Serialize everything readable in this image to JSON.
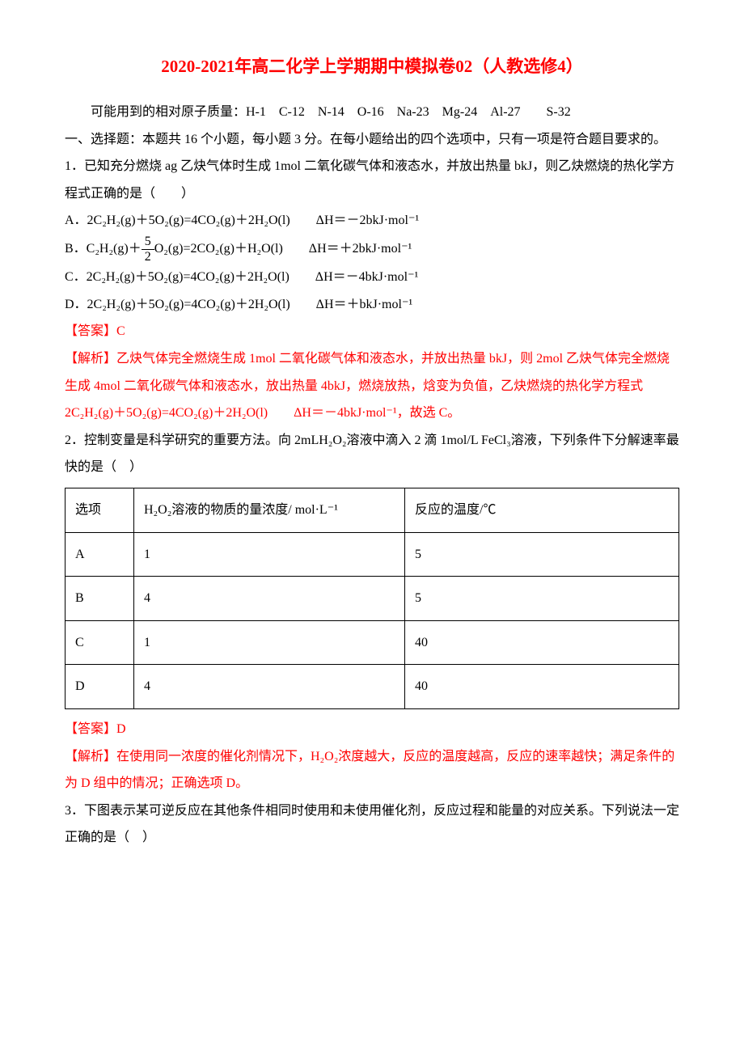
{
  "title": "2020-2021年高二化学上学期期中模拟卷02（人教选修4）",
  "atomic_masses": "可能用到的相对原子质量：H-1　C-12　N-14　O-16　Na-23　Mg-24　Al-27　　S-32",
  "section1_heading": "一、选择题：本题共 16 个小题，每小题 3 分。在每小题给出的四个选项中，只有一项是符合题目要求的。",
  "q1": {
    "stem": "1．已知充分燃烧 ag 乙炔气体时生成 1mol 二氧化碳气体和液态水，并放出热量 bkJ，则乙炔燃烧的热化学方程式正确的是（　　）",
    "optA": "A．2C₂H₂(g)＋5O₂(g)=4CO₂(g)＋2H₂O(l)　　ΔH＝－2bkJ·mol⁻¹",
    "optB_prefix": "B．C₂H₂(g)＋",
    "optB_frac_num": "5",
    "optB_frac_den": "2",
    "optB_suffix": "O₂(g)=2CO₂(g)＋H₂O(l)　　ΔH＝＋2bkJ·mol⁻¹",
    "optC": "C．2C₂H₂(g)＋5O₂(g)=4CO₂(g)＋2H₂O(l)　　ΔH＝－4bkJ·mol⁻¹",
    "optD": "D．2C₂H₂(g)＋5O₂(g)=4CO₂(g)＋2H₂O(l)　　ΔH＝＋bkJ·mol⁻¹",
    "answer": "【答案】C",
    "analysis": "【解析】乙炔气体完全燃烧生成 1mol 二氧化碳气体和液态水，并放出热量 bkJ，则 2mol 乙炔气体完全燃烧生成 4mol 二氧化碳气体和液态水，放出热量 4bkJ，燃烧放热，焓变为负值，乙炔燃烧的热化学方程式 2C₂H₂(g)＋5O₂(g)=4CO₂(g)＋2H₂O(l)　　ΔH＝－4bkJ·mol⁻¹，故选 C。"
  },
  "q2": {
    "stem": "2．控制变量是科学研究的重要方法。向 2mLH₂O₂溶液中滴入 2 滴 1mol/L FeCl₃溶液，下列条件下分解速率最快的是（　）",
    "table": {
      "headers": [
        "选项",
        "H₂O₂溶液的物质的量浓度/ mol·L⁻¹",
        "反应的温度/℃"
      ],
      "rows": [
        [
          "A",
          "1",
          "5"
        ],
        [
          "B",
          "4",
          "5"
        ],
        [
          "C",
          "1",
          "40"
        ],
        [
          "D",
          "4",
          "40"
        ]
      ]
    },
    "answer": "【答案】D",
    "analysis": "【解析】在使用同一浓度的催化剂情况下，H₂O₂浓度越大，反应的温度越高，反应的速率越快；满足条件的为 D 组中的情况；正确选项 D。"
  },
  "q3": {
    "stem": "3．下图表示某可逆反应在其他条件相同时使用和未使用催化剂，反应过程和能量的对应关系。下列说法一定正确的是（　）"
  }
}
